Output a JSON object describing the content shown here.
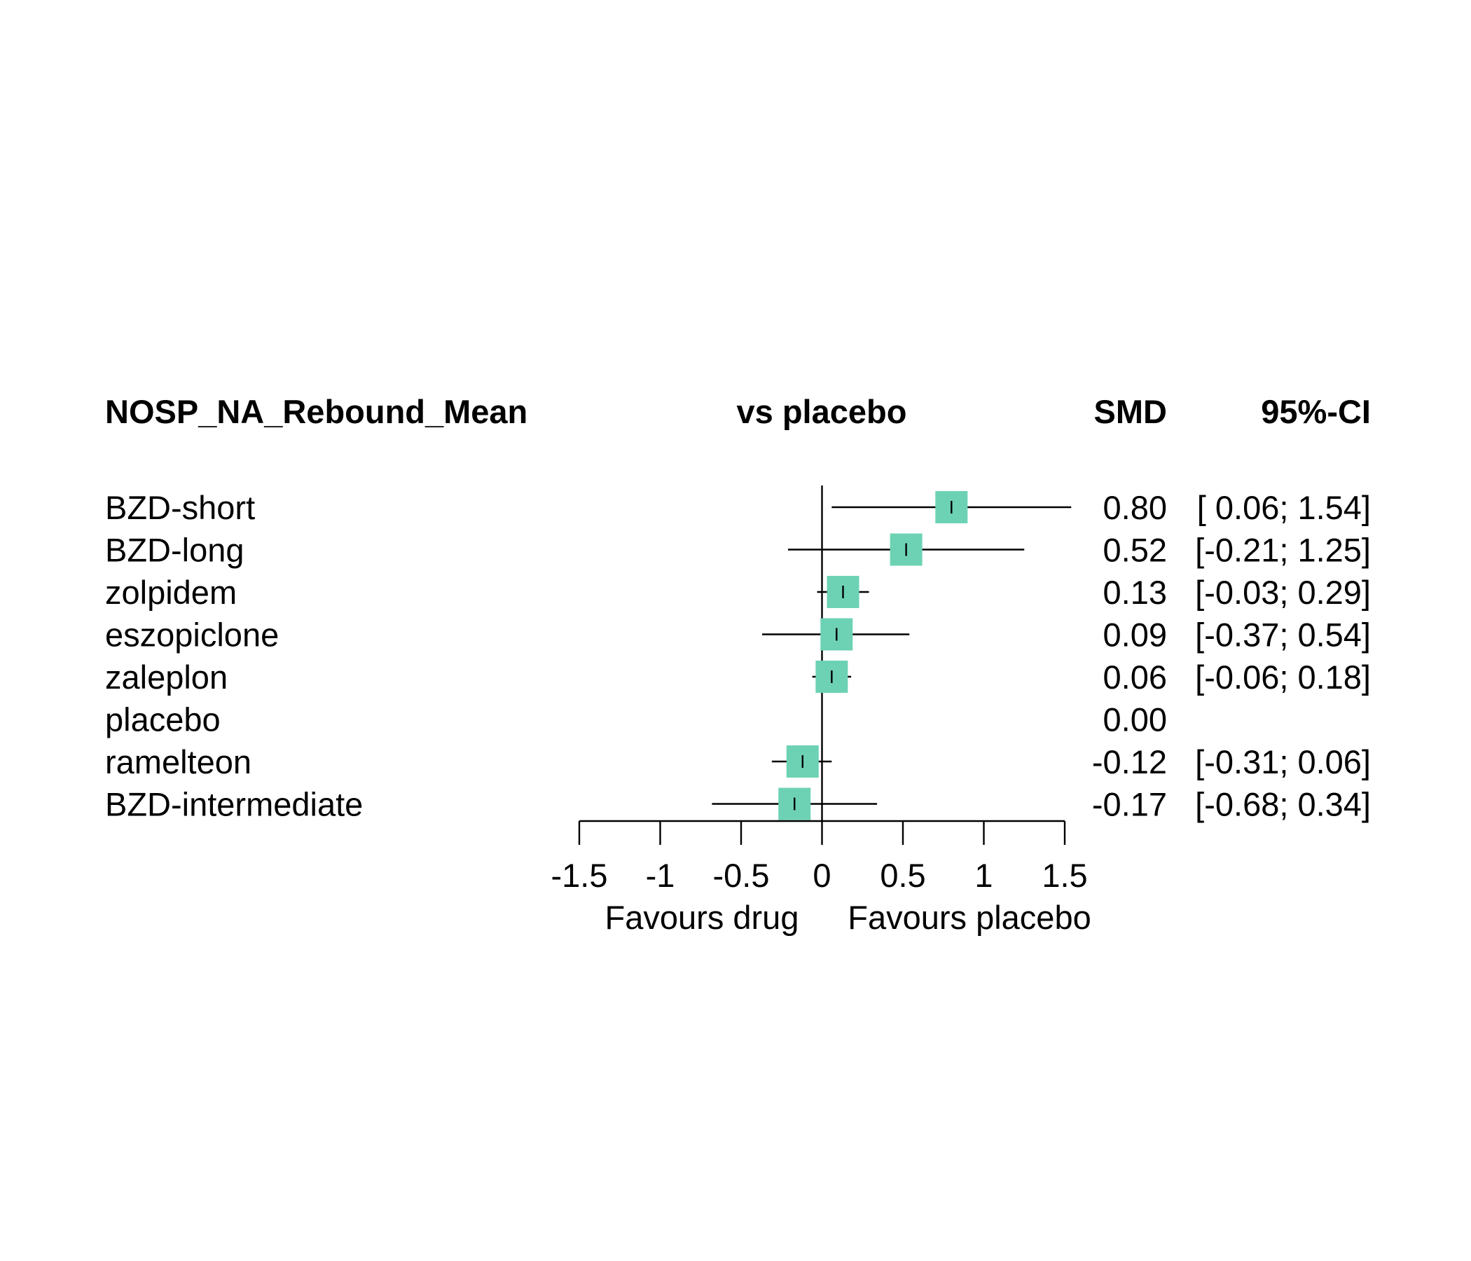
{
  "chart_data": {
    "type": "forest",
    "headers": {
      "outcome": "NOSP_NA_Rebound_Mean",
      "comparison": "vs placebo",
      "effect": "SMD",
      "ci": "95%-CI"
    },
    "treatments": [
      {
        "name": "BZD-short",
        "smd": 0.8,
        "lower": 0.06,
        "upper": 1.54,
        "smd_text": "0.80",
        "ci_text": "[ 0.06; 1.54]"
      },
      {
        "name": "BZD-long",
        "smd": 0.52,
        "lower": -0.21,
        "upper": 1.25,
        "smd_text": "0.52",
        "ci_text": "[-0.21; 1.25]"
      },
      {
        "name": "zolpidem",
        "smd": 0.13,
        "lower": -0.03,
        "upper": 0.29,
        "smd_text": "0.13",
        "ci_text": "[-0.03; 0.29]"
      },
      {
        "name": "eszopiclone",
        "smd": 0.09,
        "lower": -0.37,
        "upper": 0.54,
        "smd_text": "0.09",
        "ci_text": "[-0.37; 0.54]"
      },
      {
        "name": "zaleplon",
        "smd": 0.06,
        "lower": -0.06,
        "upper": 0.18,
        "smd_text": "0.06",
        "ci_text": "[-0.06; 0.18]"
      },
      {
        "name": "placebo",
        "smd": 0.0,
        "lower": null,
        "upper": null,
        "smd_text": "0.00",
        "ci_text": ""
      },
      {
        "name": "ramelteon",
        "smd": -0.12,
        "lower": -0.31,
        "upper": 0.06,
        "smd_text": "-0.12",
        "ci_text": "[-0.31; 0.06]"
      },
      {
        "name": "BZD-intermediate",
        "smd": -0.17,
        "lower": -0.68,
        "upper": 0.34,
        "smd_text": "-0.17",
        "ci_text": "[-0.68; 0.34]"
      }
    ],
    "x_axis": {
      "range": [
        -1.5,
        1.5
      ],
      "ticks": [
        -1.5,
        -1,
        -0.5,
        0,
        0.5,
        1,
        1.5
      ],
      "tick_labels": [
        "-1.5",
        "-1",
        "-0.5",
        "0",
        "0.5",
        "1",
        "1.5"
      ],
      "left_label": "Favours drug",
      "right_label": "Favours placebo"
    },
    "colors": {
      "box": "#6dd2b4",
      "line": "#000000"
    }
  }
}
